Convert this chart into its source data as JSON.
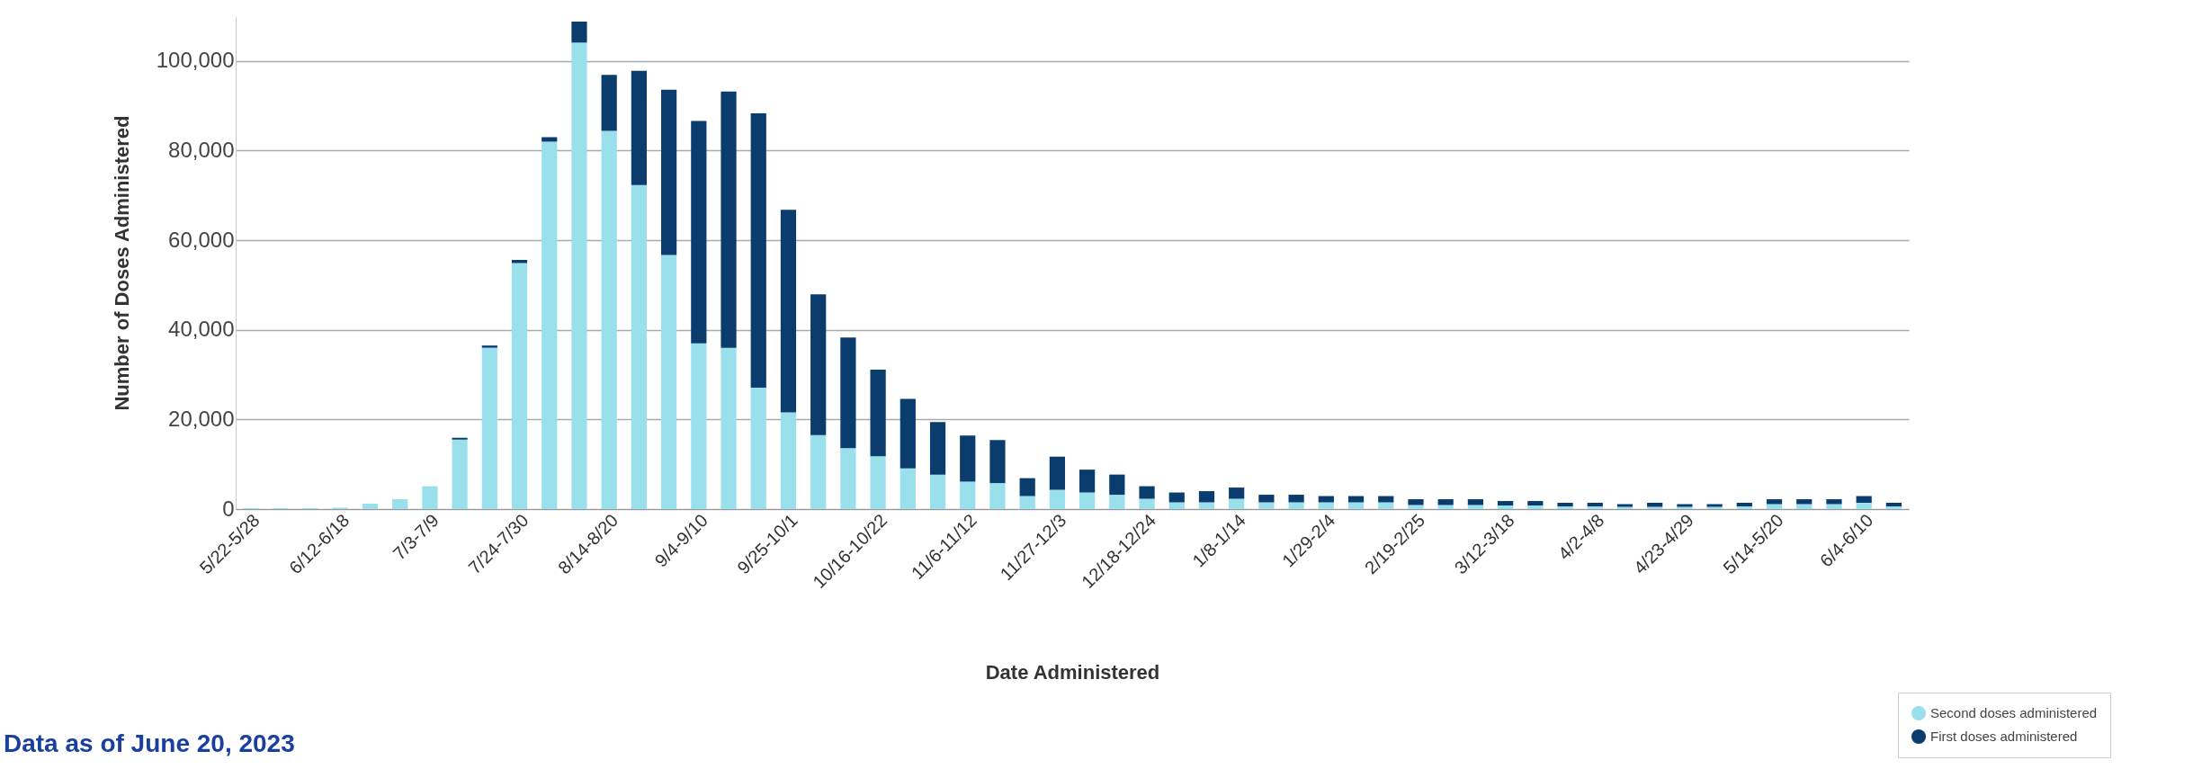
{
  "chart_data": {
    "type": "bar",
    "stacked": true,
    "xlabel": "Date Administered",
    "ylabel": "Number of Doses Administered",
    "categories": [
      "5/22-5/28",
      null,
      null,
      "6/12-6/18",
      null,
      null,
      "7/3-7/9",
      null,
      null,
      "7/24-7/30",
      null,
      null,
      "8/14-8/20",
      null,
      null,
      "9/4-9/10",
      null,
      null,
      "9/25-10/1",
      null,
      null,
      "10/16-10/22",
      null,
      null,
      "11/6-11/12",
      null,
      null,
      "11/27-12/3",
      null,
      null,
      "12/18-12/24",
      null,
      null,
      "1/8-1/14",
      null,
      null,
      "1/29-2/4",
      null,
      null,
      "2/19-2/25",
      null,
      null,
      "3/12-3/18",
      null,
      null,
      "4/2-4/8",
      null,
      null,
      "4/23-4/29",
      null,
      null,
      "5/14-5/20",
      null,
      null,
      "6/4-6/10",
      null
    ],
    "series": [
      {
        "name": "Second doses administered",
        "color": "#99e0ec",
        "values": [
          200,
          200,
          200,
          300,
          1200,
          2200,
          5100,
          15500,
          36000,
          54900,
          82000,
          104100,
          84400,
          72300,
          56700,
          37000,
          36000,
          27100,
          21600,
          16500,
          13600,
          11800,
          9100,
          7700,
          6100,
          5800,
          2900,
          4300,
          3700,
          3200,
          2300,
          1500,
          1500,
          2300,
          1500,
          1500,
          1500,
          1500,
          1500,
          900,
          900,
          900,
          800,
          800,
          600,
          600,
          500,
          500,
          500,
          500,
          600,
          1100,
          1100,
          1100,
          1400,
          600
        ]
      },
      {
        "name": "First doses administered",
        "color": "#0b3c6e",
        "values": [
          0,
          0,
          0,
          0,
          0,
          0,
          0,
          400,
          500,
          700,
          1000,
          4700,
          12500,
          25500,
          36900,
          49600,
          57200,
          61200,
          45200,
          31400,
          24700,
          19300,
          15500,
          11700,
          10300,
          9600,
          4000,
          7400,
          5100,
          4500,
          2800,
          2200,
          2500,
          2500,
          1700,
          1700,
          1400,
          1400,
          1400,
          1300,
          1300,
          1300,
          1000,
          1000,
          800,
          800,
          600,
          900,
          600,
          600,
          800,
          1100,
          1100,
          1100,
          1500,
          800
        ]
      }
    ],
    "ylim": [
      0,
      110000
    ],
    "yticks": [
      0,
      {
        "value": 20000,
        "label": "20,000"
      },
      {
        "value": 40000,
        "label": "40,000"
      },
      {
        "value": 60000,
        "label": "60,000"
      },
      {
        "value": 80000,
        "label": "80,000"
      },
      {
        "value": 100000,
        "label": "100,000"
      }
    ],
    "grid": "y",
    "legend": "bottom right",
    "annotations": [
      "Data as of June 20, 2023"
    ]
  }
}
